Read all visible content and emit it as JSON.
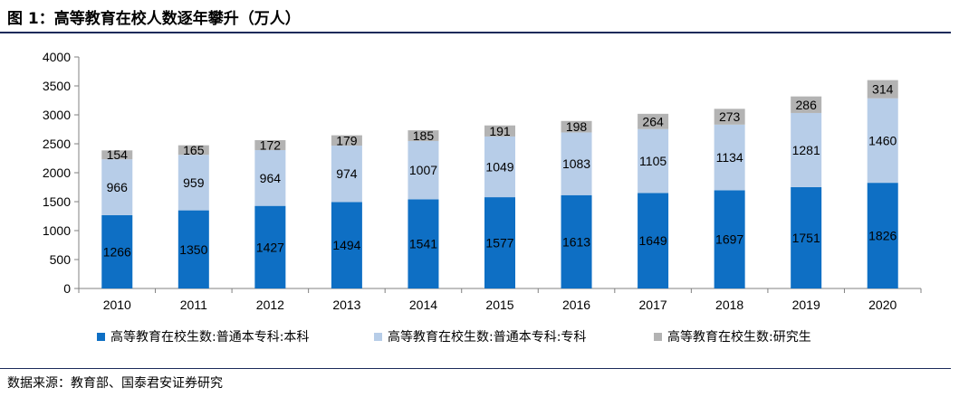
{
  "header": {
    "title": "图 1：高等教育在校人数逐年攀升（万人）"
  },
  "footer": {
    "source": "数据来源：教育部、国泰君安证券研究"
  },
  "colors": {
    "undergrad": "#0e6fc4",
    "junior": "#b7cde8",
    "graduate": "#b3b3b3",
    "header_rule": "#1a2a5a"
  },
  "chart_data": {
    "type": "bar",
    "stacked": true,
    "categories": [
      "2010",
      "2011",
      "2012",
      "2013",
      "2014",
      "2015",
      "2016",
      "2017",
      "2018",
      "2019",
      "2020"
    ],
    "series": [
      {
        "name": "高等教育在校生数:普通本专科:本科",
        "values": [
          1266,
          1350,
          1427,
          1494,
          1541,
          1577,
          1613,
          1649,
          1697,
          1751,
          1826
        ]
      },
      {
        "name": "高等教育在校生数:普通本专科:专科",
        "values": [
          966,
          959,
          964,
          974,
          1007,
          1049,
          1083,
          1105,
          1134,
          1281,
          1460
        ]
      },
      {
        "name": "高等教育在校生数:研究生",
        "values": [
          154,
          165,
          172,
          179,
          185,
          191,
          198,
          264,
          273,
          286,
          314
        ]
      }
    ],
    "ylim": [
      0,
      4000
    ],
    "yticks": [
      0,
      500,
      1000,
      1500,
      2000,
      2500,
      3000,
      3500,
      4000
    ],
    "grid": false,
    "legend_position": "bottom"
  }
}
